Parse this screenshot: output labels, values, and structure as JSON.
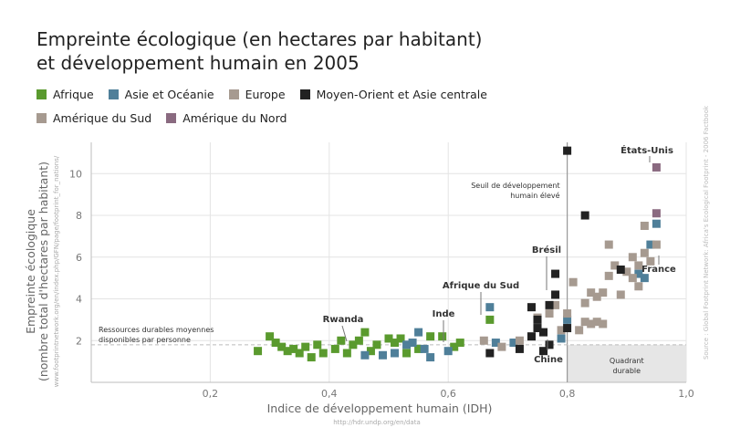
{
  "title": {
    "line1": "Empreinte écologique (en hectares par habitant)",
    "line2": "et développement humain en 2005"
  },
  "legend": [
    {
      "label": "Afrique",
      "color": "#5a9a2e"
    },
    {
      "label": "Asie et Océanie",
      "color": "#4f7f99"
    },
    {
      "label": "Europe",
      "color": "#a69a90"
    },
    {
      "label": "Moyen-Orient et Asie centrale",
      "color": "#222222"
    },
    {
      "label": "Amérique du Sud",
      "color": "#a69a90"
    },
    {
      "label": "Amérique du Nord",
      "color": "#8a6a80"
    }
  ],
  "source_vertical": "Source : Global Footprint Network: Africa's Ecological Footprint - 2006 Factbook",
  "ylabel_url": "www.footprintnetwork.org/en/index.php/GFN/page/footprint_for_nations/",
  "xlabel_url": "http://hdr.undp.org/en/data",
  "chart_data": {
    "type": "scatter",
    "xlabel": "Indice de développement humain (IDH)",
    "ylabel_line1": "Empreinte écologique",
    "ylabel_line2": "(nombre total d'hectares par habitant)",
    "xlim": [
      0,
      1.0
    ],
    "ylim": [
      0,
      11.5
    ],
    "xticks": [
      {
        "v": 0.2,
        "label": "0,2"
      },
      {
        "v": 0.4,
        "label": "0,4"
      },
      {
        "v": 0.6,
        "label": "0,6"
      },
      {
        "v": 0.8,
        "label": "0,8"
      },
      {
        "v": 1.0,
        "label": "1,0"
      }
    ],
    "yticks": [
      {
        "v": 2,
        "label": "2"
      },
      {
        "v": 4,
        "label": "4"
      },
      {
        "v": 6,
        "label": "6"
      },
      {
        "v": 8,
        "label": "8"
      },
      {
        "v": 10,
        "label": "10"
      }
    ],
    "grid": true,
    "threshold_x": 0.8,
    "threshold_label_line1": "Seuil de développement",
    "threshold_label_line2": "humain élevé",
    "biocapacity_y": 1.8,
    "biocapacity_label_line1": "Ressources durables moyennes",
    "biocapacity_label_line2": "disponibles par personne",
    "quadrant_label_line1": "Quadrant",
    "quadrant_label_line2": "durable",
    "annotations": [
      {
        "label": "Rwanda",
        "x": 0.45,
        "y": 2.5
      },
      {
        "label": "Inde",
        "x": 0.6,
        "y": 1.6
      },
      {
        "label": "Afrique du Sud",
        "x": 0.67,
        "y": 3.0
      },
      {
        "label": "Brésil",
        "x": 0.79,
        "y": 2.3
      },
      {
        "label": "Chine",
        "x": 0.77,
        "y": 1.6
      },
      {
        "label": "France",
        "x": 0.94,
        "y": 5.3
      },
      {
        "label": "États-Unis",
        "x": 0.95,
        "y": 10.3
      }
    ],
    "series": [
      {
        "name": "Afrique",
        "color": "#5a9a2e",
        "points": [
          [
            0.28,
            1.5
          ],
          [
            0.3,
            2.2
          ],
          [
            0.31,
            1.9
          ],
          [
            0.32,
            1.7
          ],
          [
            0.33,
            1.5
          ],
          [
            0.34,
            1.6
          ],
          [
            0.35,
            1.4
          ],
          [
            0.36,
            1.7
          ],
          [
            0.37,
            1.2
          ],
          [
            0.38,
            1.8
          ],
          [
            0.39,
            1.4
          ],
          [
            0.41,
            1.6
          ],
          [
            0.42,
            2.0
          ],
          [
            0.43,
            1.4
          ],
          [
            0.44,
            1.8
          ],
          [
            0.45,
            2.0
          ],
          [
            0.46,
            2.4
          ],
          [
            0.47,
            1.5
          ],
          [
            0.48,
            1.8
          ],
          [
            0.5,
            2.1
          ],
          [
            0.51,
            1.9
          ],
          [
            0.52,
            2.1
          ],
          [
            0.53,
            1.4
          ],
          [
            0.55,
            1.6
          ],
          [
            0.57,
            2.2
          ],
          [
            0.59,
            2.2
          ],
          [
            0.61,
            1.7
          ],
          [
            0.62,
            1.9
          ],
          [
            0.67,
            3.0
          ]
        ]
      },
      {
        "name": "Asie et Océanie",
        "color": "#4f7f99",
        "points": [
          [
            0.46,
            1.3
          ],
          [
            0.49,
            1.3
          ],
          [
            0.51,
            1.4
          ],
          [
            0.53,
            1.8
          ],
          [
            0.54,
            1.9
          ],
          [
            0.55,
            2.4
          ],
          [
            0.56,
            1.6
          ],
          [
            0.57,
            1.2
          ],
          [
            0.6,
            1.5
          ],
          [
            0.67,
            3.6
          ],
          [
            0.68,
            1.9
          ],
          [
            0.71,
            1.9
          ],
          [
            0.79,
            2.1
          ],
          [
            0.8,
            3.0
          ],
          [
            0.93,
            5.0
          ],
          [
            0.94,
            6.6
          ],
          [
            0.95,
            7.6
          ],
          [
            0.92,
            5.2
          ]
        ]
      },
      {
        "name": "Europe",
        "color": "#a69a90",
        "points": [
          [
            0.66,
            2.0
          ],
          [
            0.69,
            1.7
          ],
          [
            0.72,
            2.0
          ],
          [
            0.75,
            3.1
          ],
          [
            0.77,
            3.3
          ],
          [
            0.78,
            3.7
          ],
          [
            0.79,
            2.5
          ],
          [
            0.8,
            3.3
          ],
          [
            0.81,
            4.8
          ],
          [
            0.82,
            2.5
          ],
          [
            0.83,
            3.8
          ],
          [
            0.83,
            2.9
          ],
          [
            0.84,
            2.8
          ],
          [
            0.84,
            4.3
          ],
          [
            0.85,
            2.9
          ],
          [
            0.85,
            4.1
          ],
          [
            0.86,
            2.8
          ],
          [
            0.86,
            4.3
          ],
          [
            0.87,
            5.1
          ],
          [
            0.87,
            6.6
          ],
          [
            0.88,
            5.6
          ],
          [
            0.89,
            4.2
          ],
          [
            0.9,
            5.3
          ],
          [
            0.91,
            5.0
          ],
          [
            0.91,
            6.0
          ],
          [
            0.92,
            4.6
          ],
          [
            0.92,
            5.6
          ],
          [
            0.93,
            7.5
          ],
          [
            0.93,
            6.2
          ],
          [
            0.94,
            5.8
          ],
          [
            0.95,
            6.6
          ]
        ]
      },
      {
        "name": "Moyen-Orient et Asie centrale",
        "color": "#222222",
        "points": [
          [
            0.67,
            1.4
          ],
          [
            0.72,
            1.6
          ],
          [
            0.74,
            2.2
          ],
          [
            0.74,
            3.6
          ],
          [
            0.75,
            2.6
          ],
          [
            0.75,
            3.0
          ],
          [
            0.76,
            2.4
          ],
          [
            0.76,
            1.5
          ],
          [
            0.77,
            1.8
          ],
          [
            0.77,
            3.7
          ],
          [
            0.78,
            4.2
          ],
          [
            0.78,
            5.2
          ],
          [
            0.8,
            2.6
          ],
          [
            0.8,
            11.1
          ],
          [
            0.83,
            8.0
          ],
          [
            0.89,
            5.4
          ]
        ]
      },
      {
        "name": "Amérique du Nord",
        "color": "#8a6a80",
        "points": [
          [
            0.95,
            10.3
          ],
          [
            0.95,
            8.1
          ]
        ]
      }
    ]
  }
}
